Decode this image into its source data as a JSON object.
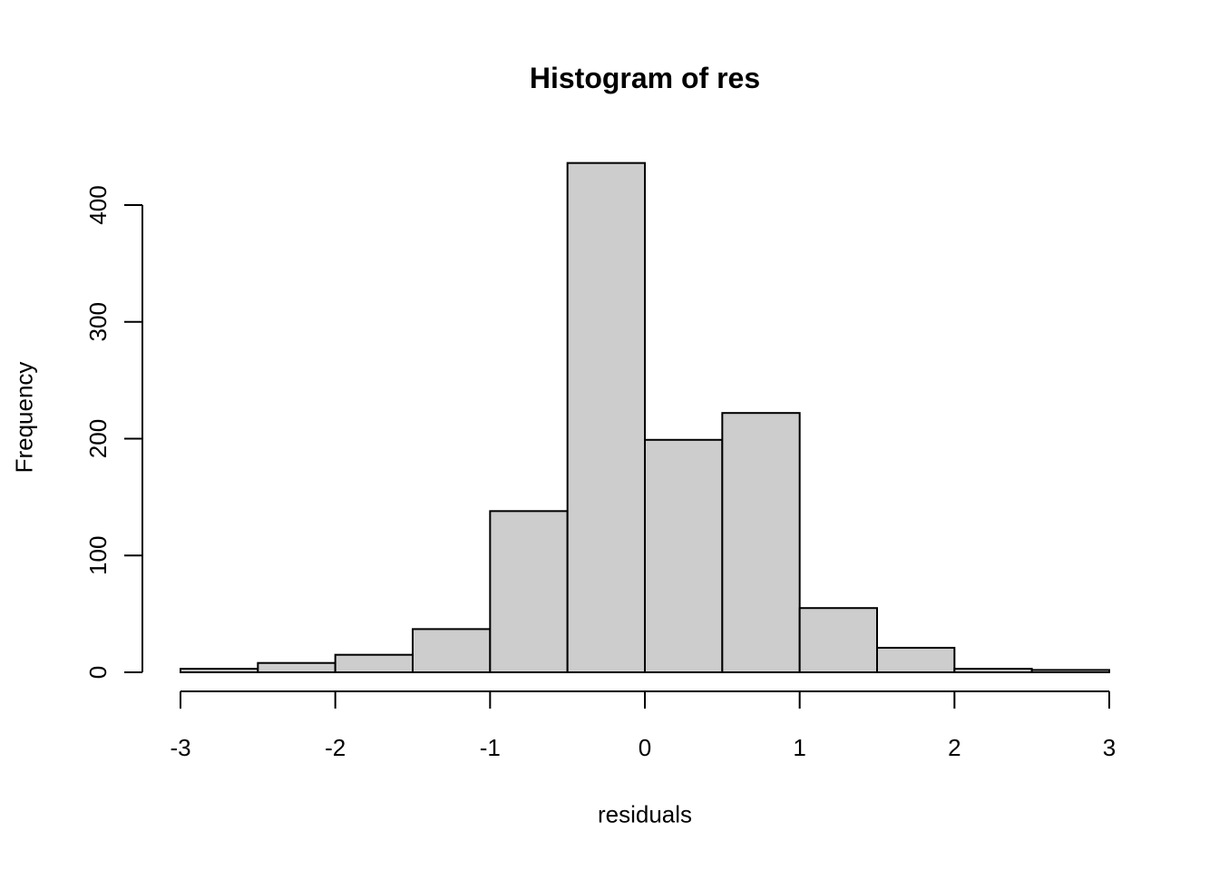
{
  "figure": {
    "title": "Histogram of res",
    "x_axis_label": "residuals",
    "y_axis_label": "Frequency"
  },
  "chart_data": {
    "type": "bar",
    "subtype": "histogram",
    "title": "Histogram of res",
    "xlabel": "residuals",
    "ylabel": "Frequency",
    "bin_edges": [
      -3,
      -2.5,
      -2,
      -1.5,
      -1,
      -0.5,
      0,
      0.5,
      1,
      1.5,
      2,
      2.5,
      3
    ],
    "counts": [
      3,
      8,
      15,
      37,
      138,
      436,
      199,
      222,
      55,
      21,
      3,
      2
    ],
    "x_ticks": [
      -3,
      -2,
      -1,
      0,
      1,
      2,
      3
    ],
    "x_tick_labels": [
      "-3",
      "-2",
      "-1",
      "0",
      "1",
      "2",
      "3"
    ],
    "y_ticks": [
      0,
      100,
      200,
      300,
      400
    ],
    "y_tick_labels": [
      "0",
      "100",
      "200",
      "300",
      "400"
    ],
    "xlim": [
      -3,
      3
    ],
    "ylim": [
      0,
      400
    ],
    "grid": false,
    "legend_position": "none",
    "bar_fill": "#cdcdcd",
    "bar_stroke": "#000000",
    "axis_color": "#000000",
    "text_color": "#000000",
    "background": "#ffffff"
  }
}
